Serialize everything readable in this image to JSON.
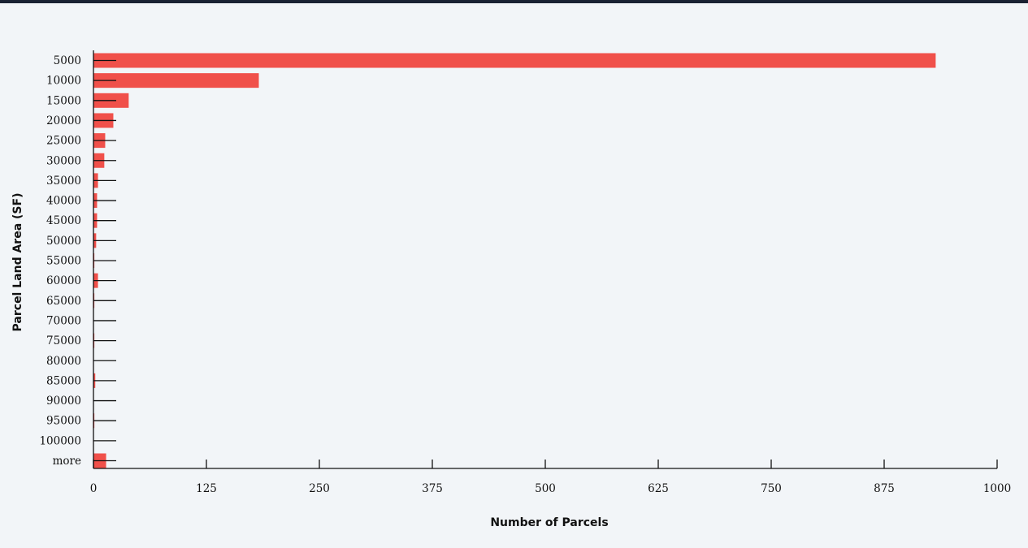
{
  "chart_data": {
    "type": "bar",
    "orientation": "horizontal",
    "categories": [
      "5000",
      "10000",
      "15000",
      "20000",
      "25000",
      "30000",
      "35000",
      "40000",
      "45000",
      "50000",
      "55000",
      "60000",
      "65000",
      "70000",
      "75000",
      "80000",
      "85000",
      "90000",
      "95000",
      "100000",
      "more"
    ],
    "values": [
      932,
      183,
      39,
      22,
      13,
      12,
      5,
      4,
      4,
      3,
      1,
      5,
      1,
      0,
      1,
      0,
      2,
      0,
      1,
      0,
      14
    ],
    "title": "",
    "xlabel": "Number of Parcels",
    "ylabel": "Parcel Land Area (SF)",
    "xlim": [
      0,
      1000
    ],
    "xticks": [
      0,
      125,
      250,
      375,
      500,
      625,
      750,
      875,
      1000
    ],
    "grid": false,
    "bar_color": "#f0504a",
    "axis_color": "#111111",
    "background": "#f2f5f8"
  }
}
